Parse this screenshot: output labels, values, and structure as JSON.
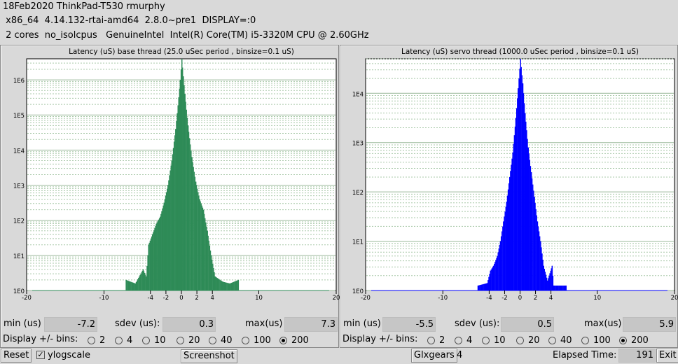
{
  "header": {
    "line1": "18Feb2020 ThinkPad-T530 rmurphy",
    "line2": " x86_64  4.14.132-rtai-amd64  2.8.0~pre1  DISPLAY=:0",
    "line3": " 2 cores  no_isolcpus   GenuineIntel  Intel(R) Core(TM) i5-3320M CPU @ 2.60GHz"
  },
  "panels": [
    {
      "title": "Latency (uS) base thread (25.0 uSec period , binsize=0.1 uS)",
      "color": "#2e8b57",
      "min_label": "min (us)",
      "min": "-7.2",
      "sdev_label": "sdev (us):",
      "sdev": "0.3",
      "max_label": "max(us)",
      "max": "7.3",
      "bins_label": "Display +/- bins:",
      "bins": [
        "2",
        "4",
        "10",
        "20",
        "40",
        "100",
        "200"
      ],
      "selected_bin": "200",
      "chart_data": {
        "type": "bar",
        "yscale": "log",
        "x_ticks": [
          "-20",
          "-10",
          "-4",
          "-2",
          "0",
          "2",
          "4",
          "10",
          "20"
        ],
        "x_tick_values": [
          -20,
          -10,
          -4,
          -2,
          0,
          2,
          4,
          10,
          20
        ],
        "y_ticks": [
          "1E0",
          "1E1",
          "1E2",
          "1E3",
          "1E4",
          "1E5",
          "1E6"
        ],
        "xlim": [
          -20,
          20
        ],
        "ylim_log10": [
          0,
          6.6
        ],
        "grid": true,
        "points": [
          [
            -7.2,
            0.3
          ],
          [
            -6.0,
            0.2
          ],
          [
            -5.0,
            0.6
          ],
          [
            -4.6,
            0.4
          ],
          [
            -4.3,
            1.3
          ],
          [
            -3.8,
            1.6
          ],
          [
            -3.3,
            1.9
          ],
          [
            -2.8,
            2.1
          ],
          [
            -2.3,
            2.5
          ],
          [
            -1.8,
            3.0
          ],
          [
            -1.3,
            3.7
          ],
          [
            -0.8,
            4.6
          ],
          [
            -0.4,
            5.5
          ],
          [
            -0.2,
            6.0
          ],
          [
            0.0,
            6.6
          ],
          [
            0.2,
            6.1
          ],
          [
            0.4,
            5.6
          ],
          [
            0.8,
            4.7
          ],
          [
            1.3,
            3.8
          ],
          [
            1.8,
            3.1
          ],
          [
            2.3,
            2.6
          ],
          [
            2.8,
            2.3
          ],
          [
            3.3,
            1.7
          ],
          [
            3.8,
            1.0
          ],
          [
            4.3,
            0.4
          ],
          [
            5.3,
            0.25
          ],
          [
            6.2,
            0.2
          ],
          [
            7.3,
            0.3
          ]
        ]
      }
    },
    {
      "title": "Latency (uS) servo thread (1000.0 uSec period , binsize=0.1 uS)",
      "color": "#0000ff",
      "min_label": "min (us)",
      "min": "-5.5",
      "sdev_label": "sdev (us):",
      "sdev": "0.5",
      "max_label": "max(us)",
      "max": "5.9",
      "bins_label": "Display +/- bins:",
      "bins": [
        "2",
        "4",
        "10",
        "20",
        "40",
        "100",
        "200"
      ],
      "selected_bin": "200",
      "chart_data": {
        "type": "bar",
        "yscale": "log",
        "x_ticks": [
          "-20",
          "-10",
          "-4",
          "-2",
          "0",
          "2",
          "4",
          "10",
          "20"
        ],
        "x_tick_values": [
          -20,
          -10,
          -4,
          -2,
          0,
          2,
          4,
          10,
          20
        ],
        "y_ticks": [
          "1E0",
          "1E1",
          "1E2",
          "1E3",
          "1E4"
        ],
        "xlim": [
          -20,
          20
        ],
        "ylim_log10": [
          0,
          4.7
        ],
        "grid": true,
        "points": [
          [
            -5.5,
            0.1
          ],
          [
            -4.3,
            0.15
          ],
          [
            -3.9,
            0.4
          ],
          [
            -3.5,
            0.5
          ],
          [
            -3.0,
            0.7
          ],
          [
            -2.6,
            1.0
          ],
          [
            -2.2,
            1.4
          ],
          [
            -1.8,
            1.8
          ],
          [
            -1.4,
            2.3
          ],
          [
            -1.0,
            2.8
          ],
          [
            -0.6,
            3.5
          ],
          [
            -0.3,
            4.1
          ],
          [
            0.0,
            4.7
          ],
          [
            0.3,
            4.2
          ],
          [
            0.6,
            3.6
          ],
          [
            1.0,
            2.9
          ],
          [
            1.4,
            2.4
          ],
          [
            1.8,
            1.9
          ],
          [
            2.2,
            1.4
          ],
          [
            2.6,
            1.0
          ],
          [
            3.0,
            0.5
          ],
          [
            3.5,
            0.2
          ],
          [
            4.1,
            0.5
          ],
          [
            4.3,
            0.1
          ],
          [
            5.9,
            0.1
          ]
        ]
      }
    }
  ],
  "footer": {
    "reset": "Reset",
    "ylog_check": "✓",
    "ylog": "ylogscale",
    "screenshot": "Screenshot",
    "glxgears": "Glxgears",
    "glx_count": "4",
    "elapsed_label": "Elapsed Time:",
    "elapsed": "191",
    "exit": "Exit"
  }
}
